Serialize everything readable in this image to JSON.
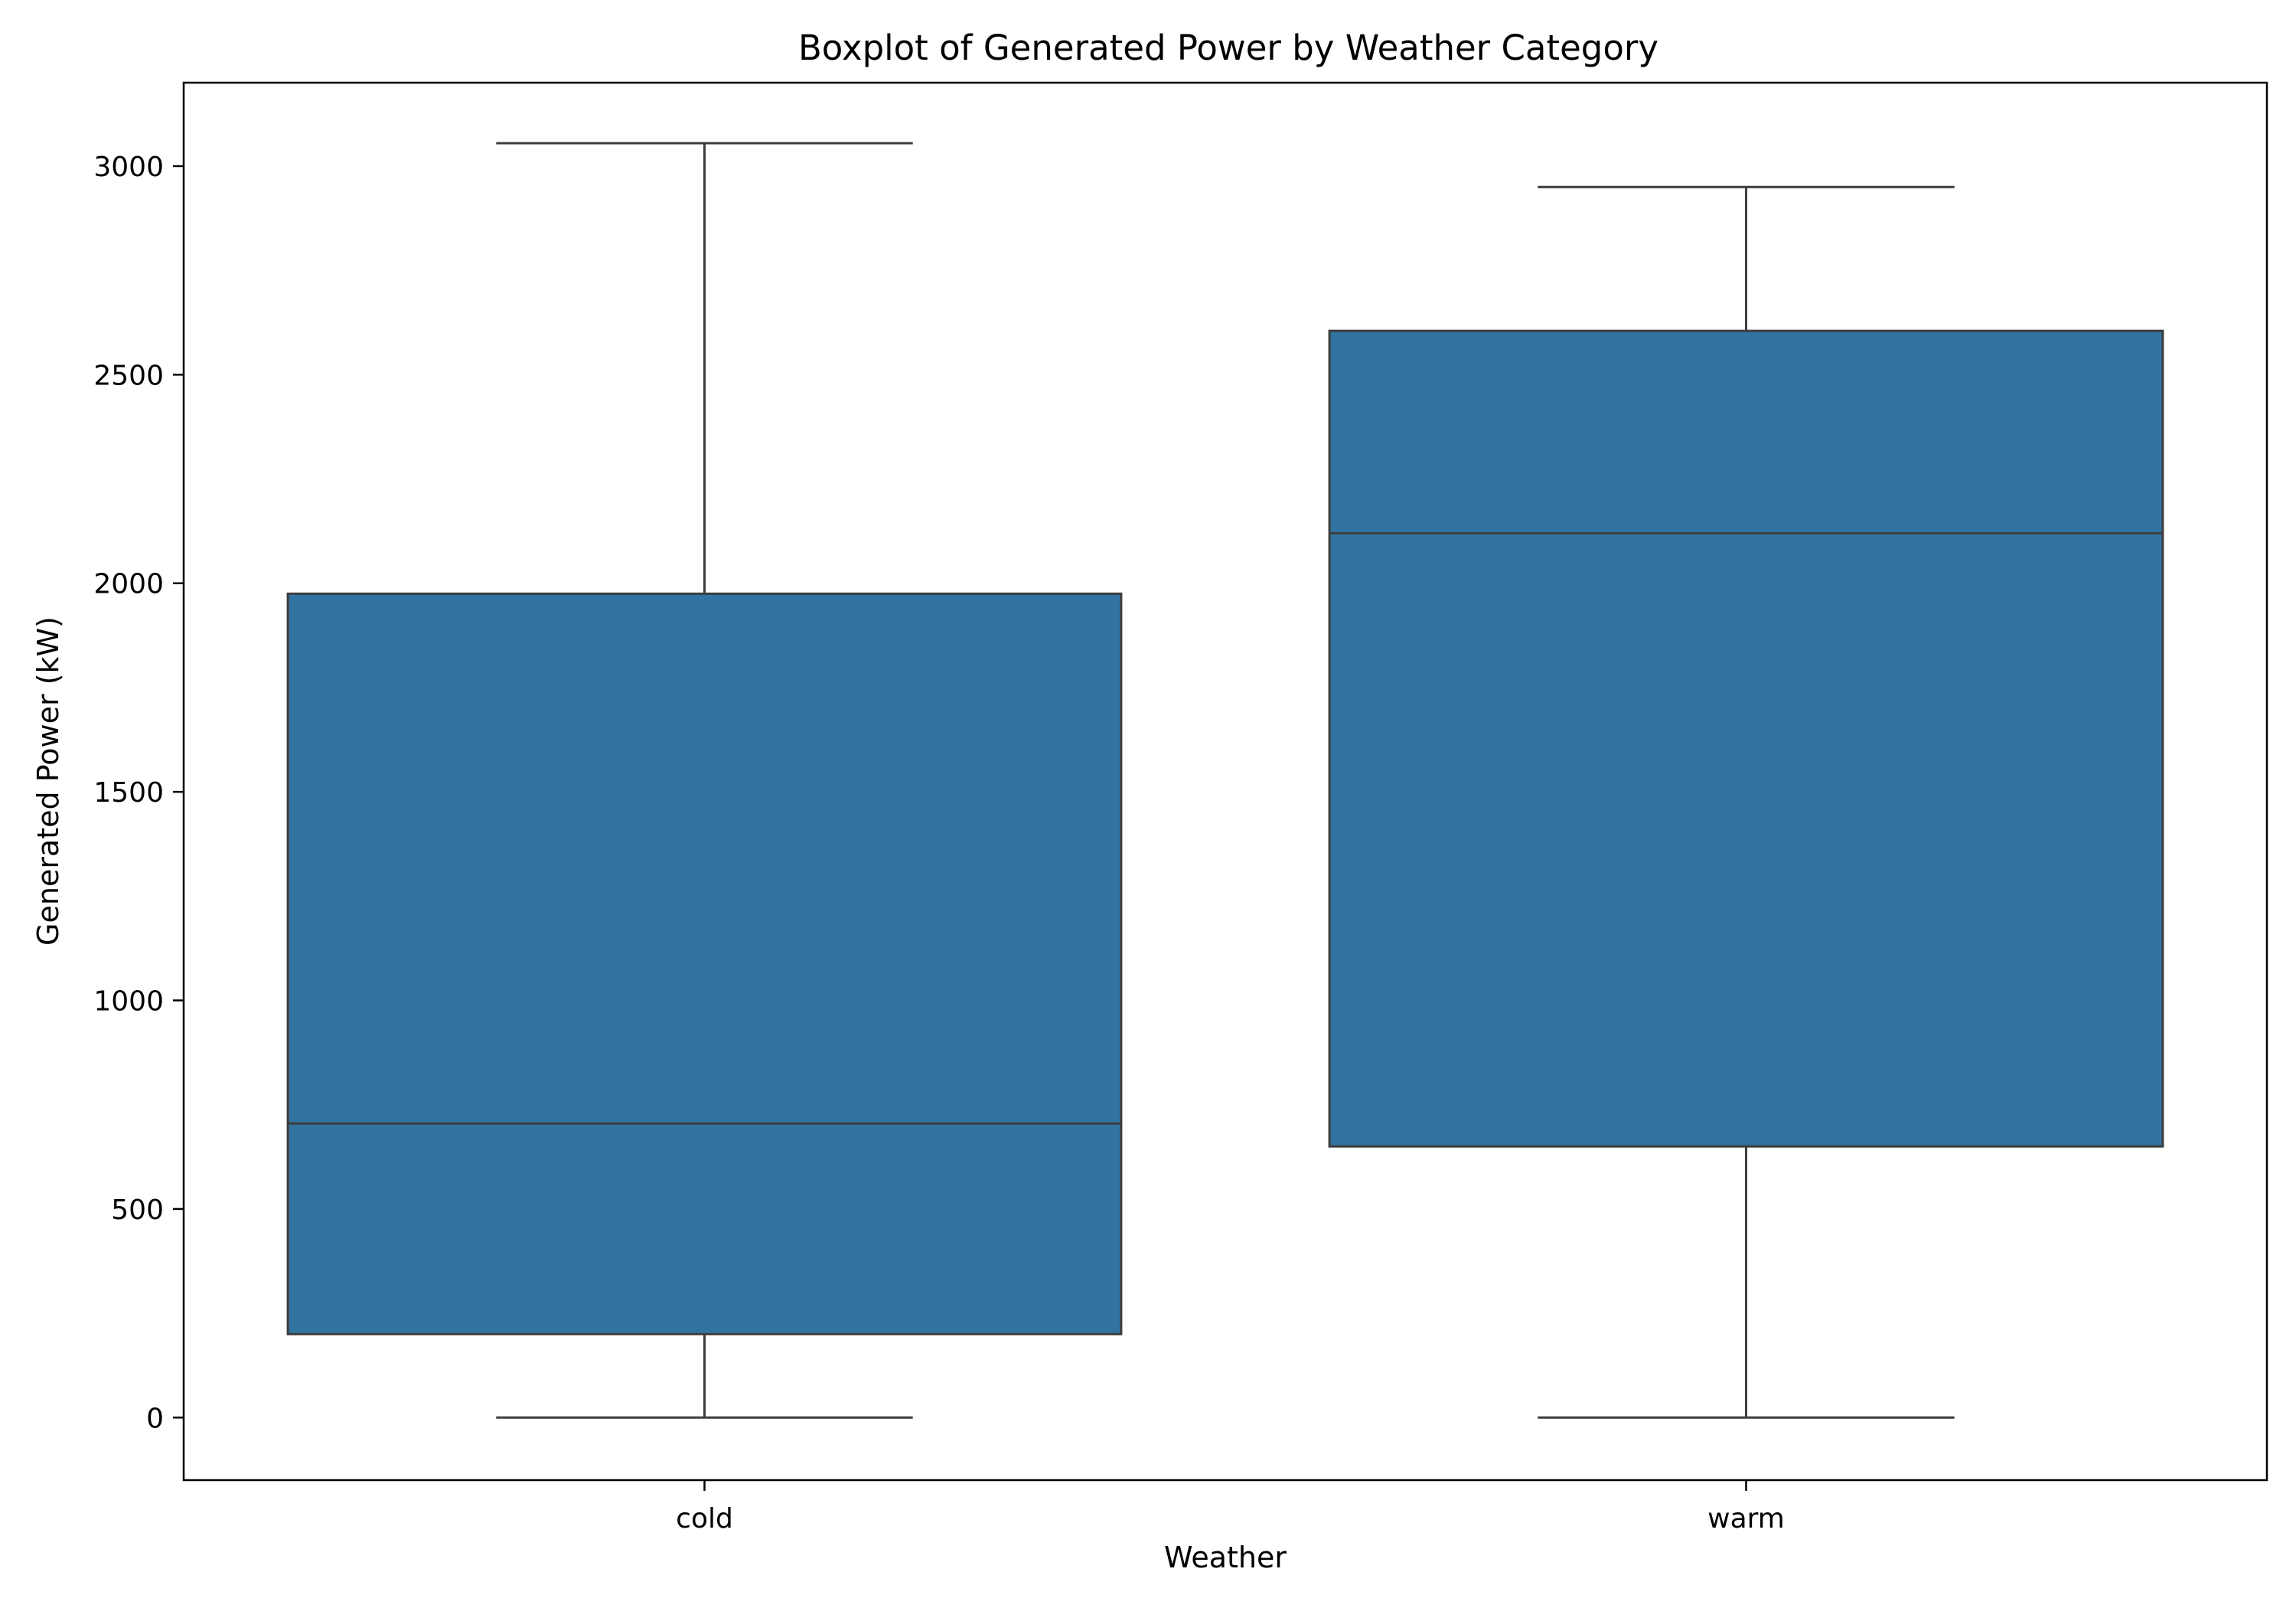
{
  "chart_data": {
    "type": "boxplot",
    "title": "Boxplot of Generated Power by Weather Category",
    "xlabel": "Weather",
    "ylabel": "Generated Power (kW)",
    "ylim": [
      -150,
      3200
    ],
    "yticks": [
      0,
      500,
      1000,
      1500,
      2000,
      2500,
      3000
    ],
    "categories": [
      "cold",
      "warm"
    ],
    "boxes": [
      {
        "category": "cold",
        "whisker_low": 0,
        "q1": 200,
        "median": 705,
        "q3": 1975,
        "whisker_high": 3055
      },
      {
        "category": "warm",
        "whisker_low": 0,
        "q1": 650,
        "median": 2120,
        "q3": 2605,
        "whisker_high": 2950
      }
    ],
    "grid": false,
    "legend": "none",
    "colors": {
      "box_fill": "#3274a1",
      "line": "#3d3d3d",
      "axes": "#000000"
    }
  }
}
